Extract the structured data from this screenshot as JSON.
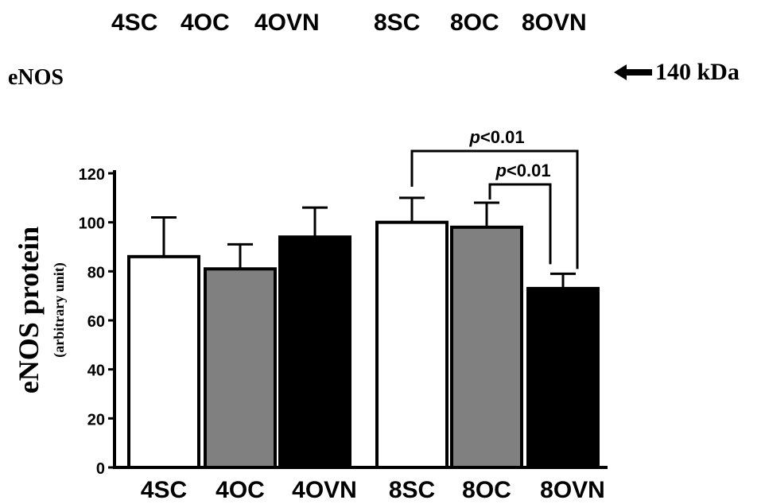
{
  "blot": {
    "lanes": [
      "4SC",
      "4OC",
      "4OVN",
      "8SC",
      "8OC",
      "8OVN"
    ],
    "protein_label": "eNOS",
    "marker_label": "140 kDa",
    "marker_icon": "left-arrow-icon"
  },
  "chart_data": {
    "type": "bar",
    "categories": [
      "4SC",
      "4OC",
      "4OVN",
      "8SC",
      "8OC",
      "8OVN"
    ],
    "values": [
      86,
      81,
      94,
      100,
      98,
      73
    ],
    "errors": [
      16,
      10,
      12,
      10,
      10,
      6
    ],
    "colors": [
      "#ffffff",
      "#808080",
      "#000000",
      "#ffffff",
      "#808080",
      "#000000"
    ],
    "ylabel": "eNOS protein",
    "ylabel_sub": "(arbitrary unit)",
    "ylim": [
      0,
      120
    ],
    "yticks": [
      0,
      20,
      40,
      60,
      80,
      100,
      120
    ],
    "grid": false,
    "annotations": [
      {
        "from": "8SC",
        "to": "8OVN",
        "text": "p<0.01",
        "p_italic": "p",
        "rest": "<0.01"
      },
      {
        "from": "8OC",
        "to": "8OVN",
        "text": "p<0.01",
        "p_italic": "p",
        "rest": "<0.01"
      }
    ]
  }
}
